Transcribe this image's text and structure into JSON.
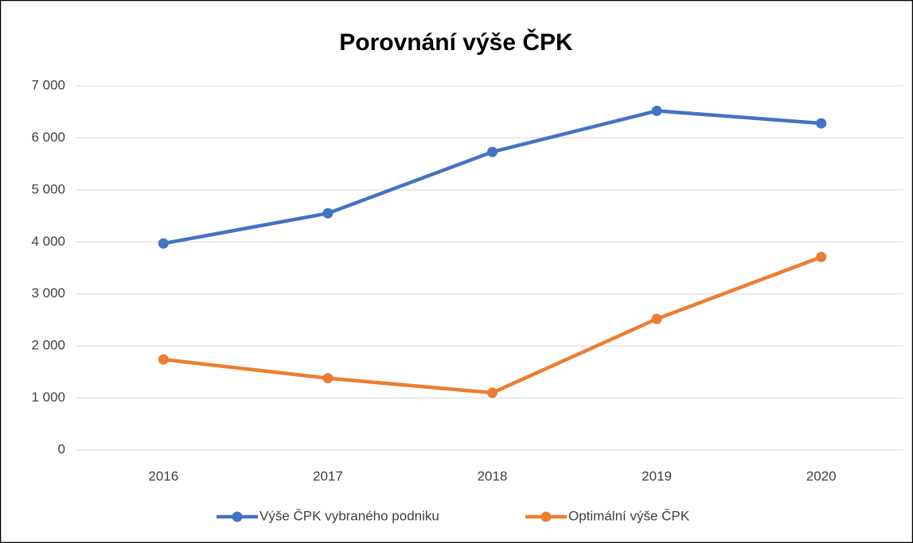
{
  "chart_data": {
    "type": "line",
    "title": "Porovnání výše ČPK",
    "categories": [
      "2016",
      "2017",
      "2018",
      "2019",
      "2020"
    ],
    "series": [
      {
        "name": "Výše ČPK vybraného podniku",
        "color": "#4472c4",
        "values": [
          3970,
          4550,
          5730,
          6520,
          6280
        ]
      },
      {
        "name": "Optimální výše ČPK",
        "color": "#ed7d31",
        "values": [
          1740,
          1380,
          1100,
          2520,
          3710
        ]
      }
    ],
    "ylim": [
      0,
      7000
    ],
    "yticks": [
      0,
      {
        "value": 1000,
        "label": "1 000"
      },
      {
        "value": 2000,
        "label": "2 000"
      },
      {
        "value": 3000,
        "label": "3 000"
      },
      {
        "value": 4000,
        "label": "4 000"
      },
      {
        "value": 5000,
        "label": "5 000"
      },
      {
        "value": 6000,
        "label": "6 000"
      },
      {
        "value": 7000,
        "label": "7 000"
      }
    ],
    "grid": true,
    "legend": "bottom"
  }
}
